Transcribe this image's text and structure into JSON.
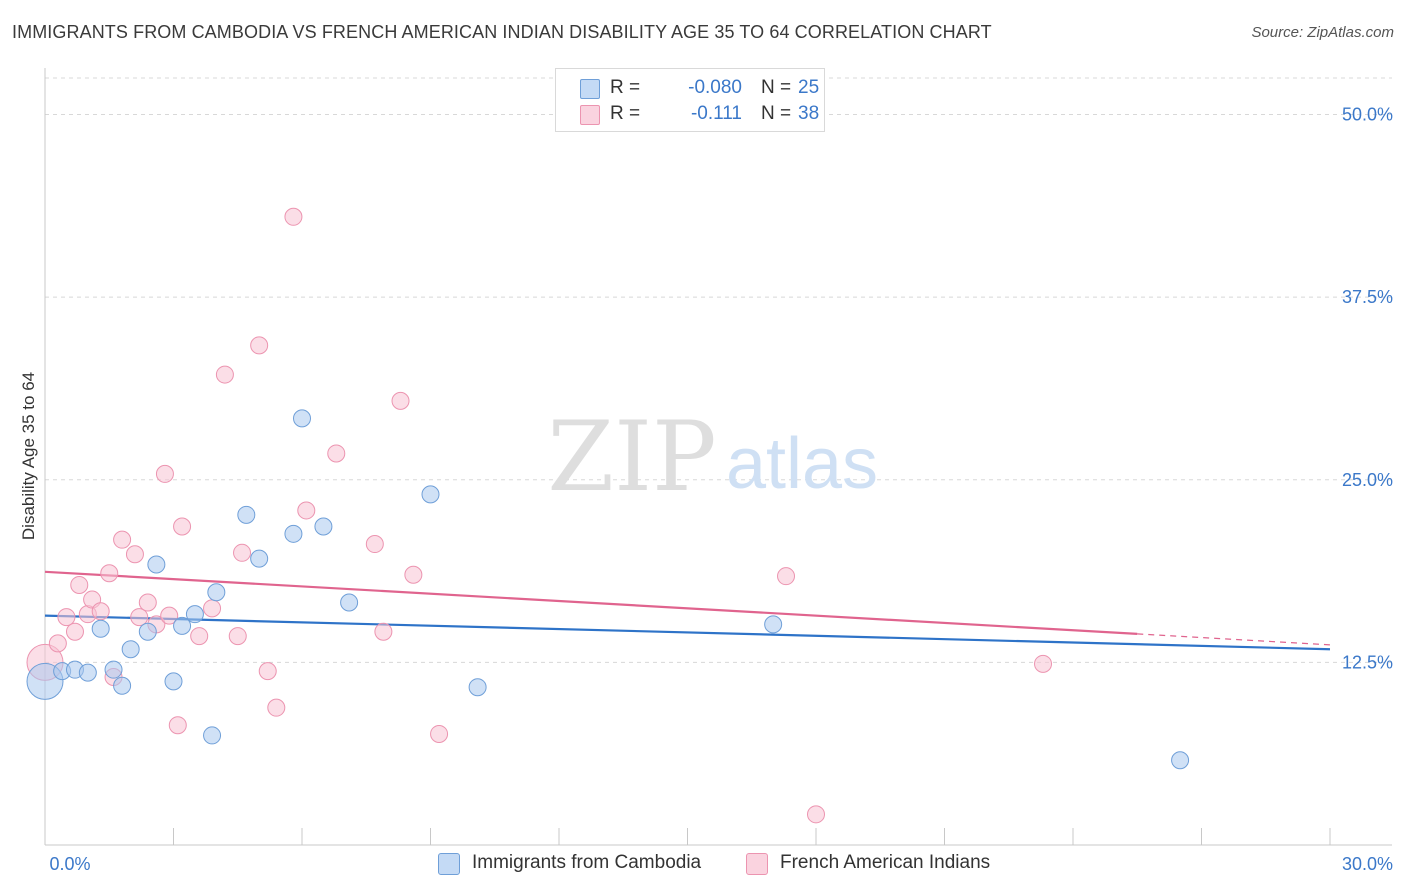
{
  "title": "IMMIGRANTS FROM CAMBODIA VS FRENCH AMERICAN INDIAN DISABILITY AGE 35 TO 64 CORRELATION CHART",
  "source": "Source: ZipAtlas.com",
  "watermark": {
    "zip": "ZIP",
    "atlas": "atlas"
  },
  "legend": {
    "r_label": "R =",
    "n_label": "N =",
    "series": [
      {
        "r": "-0.080",
        "n": "25"
      },
      {
        "r": "-0.111",
        "n": "38"
      }
    ]
  },
  "chart_data": {
    "type": "scatter",
    "title": "IMMIGRANTS FROM CAMBODIA VS FRENCH AMERICAN INDIAN DISABILITY AGE 35 TO 64 CORRELATION CHART",
    "xlabel": "",
    "ylabel": "Disability Age 35 to 64",
    "xlim": [
      0,
      30
    ],
    "ylim": [
      0,
      52.5
    ],
    "x_tick_labels": [
      "0.0%",
      "30.0%"
    ],
    "y_ticks": [
      12.5,
      25.0,
      37.5,
      50.0
    ],
    "y_tick_labels": [
      "12.5%",
      "25.0%",
      "37.5%",
      "50.0%"
    ],
    "grid": true,
    "series": [
      {
        "name": "Immigrants from Cambodia",
        "color": "#a9c8ee",
        "stroke": "#6f9fd8",
        "line_color": "#2e73c8",
        "trend": {
          "x0": 0,
          "y0": 15.7,
          "x1": 30,
          "y1": 13.4,
          "solid_until": 30
        },
        "points": [
          {
            "x": 0.0,
            "y": 11.2,
            "big": true
          },
          {
            "x": 0.4,
            "y": 11.9
          },
          {
            "x": 0.7,
            "y": 12.0
          },
          {
            "x": 1.0,
            "y": 11.8
          },
          {
            "x": 1.3,
            "y": 14.8
          },
          {
            "x": 1.6,
            "y": 12.0
          },
          {
            "x": 1.8,
            "y": 10.9
          },
          {
            "x": 2.0,
            "y": 13.4
          },
          {
            "x": 2.4,
            "y": 14.6
          },
          {
            "x": 2.6,
            "y": 19.2
          },
          {
            "x": 3.0,
            "y": 11.2
          },
          {
            "x": 3.2,
            "y": 15.0
          },
          {
            "x": 3.5,
            "y": 15.8
          },
          {
            "x": 3.9,
            "y": 7.5
          },
          {
            "x": 4.0,
            "y": 17.3
          },
          {
            "x": 4.7,
            "y": 22.6
          },
          {
            "x": 5.0,
            "y": 19.6
          },
          {
            "x": 5.8,
            "y": 21.3
          },
          {
            "x": 6.0,
            "y": 29.2
          },
          {
            "x": 6.5,
            "y": 21.8
          },
          {
            "x": 7.1,
            "y": 16.6
          },
          {
            "x": 9.0,
            "y": 24.0
          },
          {
            "x": 10.1,
            "y": 10.8
          },
          {
            "x": 17.0,
            "y": 15.1
          },
          {
            "x": 26.5,
            "y": 5.8
          }
        ]
      },
      {
        "name": "French American Indians",
        "color": "#f7c3d3",
        "stroke": "#ec94b0",
        "line_color": "#e0648e",
        "trend": {
          "x0": 0,
          "y0": 18.7,
          "x1": 30,
          "y1": 13.7,
          "solid_until": 25.5
        },
        "points": [
          {
            "x": 0.0,
            "y": 12.5,
            "big": true
          },
          {
            "x": 0.3,
            "y": 13.8
          },
          {
            "x": 0.5,
            "y": 15.6
          },
          {
            "x": 0.7,
            "y": 14.6
          },
          {
            "x": 0.8,
            "y": 17.8
          },
          {
            "x": 1.0,
            "y": 15.8
          },
          {
            "x": 1.1,
            "y": 16.8
          },
          {
            "x": 1.3,
            "y": 16.0
          },
          {
            "x": 1.5,
            "y": 18.6
          },
          {
            "x": 1.6,
            "y": 11.5
          },
          {
            "x": 1.8,
            "y": 20.9
          },
          {
            "x": 2.1,
            "y": 19.9
          },
          {
            "x": 2.2,
            "y": 15.6
          },
          {
            "x": 2.4,
            "y": 16.6
          },
          {
            "x": 2.6,
            "y": 15.1
          },
          {
            "x": 2.8,
            "y": 25.4
          },
          {
            "x": 2.9,
            "y": 15.7
          },
          {
            "x": 3.1,
            "y": 8.2
          },
          {
            "x": 3.2,
            "y": 21.8
          },
          {
            "x": 3.6,
            "y": 14.3
          },
          {
            "x": 3.9,
            "y": 16.2
          },
          {
            "x": 4.2,
            "y": 32.2
          },
          {
            "x": 4.5,
            "y": 14.3
          },
          {
            "x": 4.6,
            "y": 20.0
          },
          {
            "x": 5.0,
            "y": 34.2
          },
          {
            "x": 5.2,
            "y": 11.9
          },
          {
            "x": 5.4,
            "y": 9.4
          },
          {
            "x": 5.8,
            "y": 43.0
          },
          {
            "x": 6.1,
            "y": 22.9
          },
          {
            "x": 6.8,
            "y": 26.8
          },
          {
            "x": 7.7,
            "y": 20.6
          },
          {
            "x": 7.9,
            "y": 14.6
          },
          {
            "x": 8.3,
            "y": 30.4
          },
          {
            "x": 8.6,
            "y": 18.5
          },
          {
            "x": 9.2,
            "y": 7.6
          },
          {
            "x": 17.3,
            "y": 18.4
          },
          {
            "x": 18.0,
            "y": 2.1
          },
          {
            "x": 23.3,
            "y": 12.4
          }
        ]
      }
    ]
  }
}
